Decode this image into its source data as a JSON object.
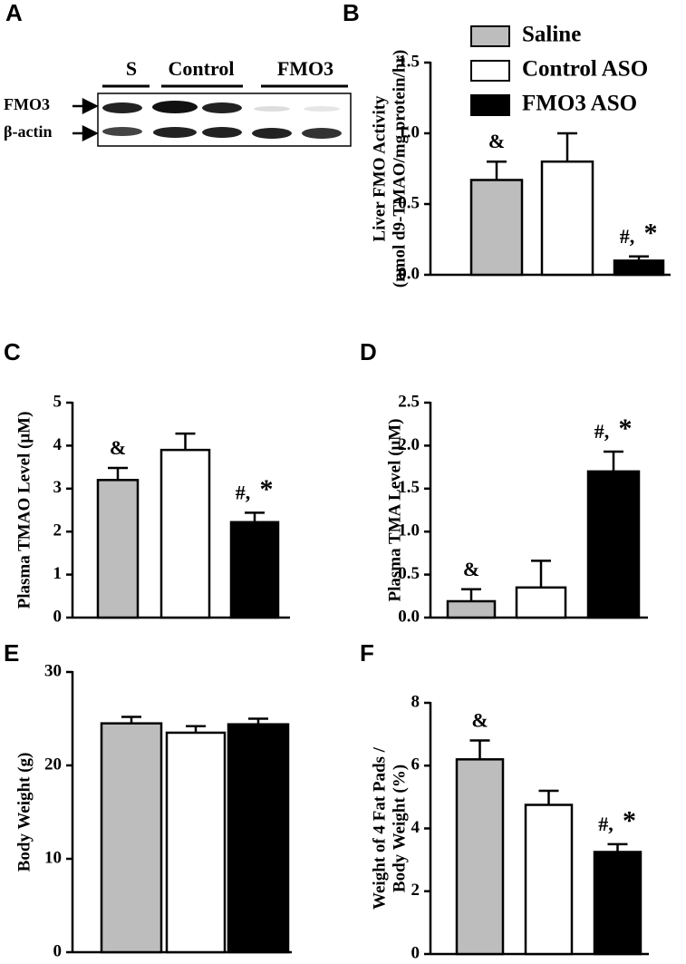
{
  "blot": {
    "panel": "A",
    "lanes": [
      "S",
      "Control",
      "FMO3"
    ],
    "rows": [
      "FMO3",
      "β-actin"
    ]
  },
  "chart_data": [
    {
      "type": "bar",
      "panel": "B",
      "ylabel": [
        "Liver FMO Activity",
        "(nmol d9-TMAO/mg protein/hr)"
      ],
      "ylim": [
        0,
        1.5
      ],
      "yticks": [
        {
          "value": 0,
          "label": "0.0"
        },
        {
          "value": 0.5,
          "label": "0.5"
        },
        {
          "value": 1,
          "label": "1.0"
        },
        {
          "value": 1.5,
          "label": "1.5"
        }
      ],
      "values": [
        0.67,
        0.8,
        0.1
      ],
      "errors": [
        0.13,
        0.2,
        0.03
      ],
      "colors": [
        "#bdbdbd",
        "#ffffff",
        "#000000"
      ],
      "annotations": [
        [
          "&"
        ],
        [],
        [
          "#,",
          "*"
        ]
      ],
      "legend": [
        "Saline",
        "Control ASO",
        "FMO3 ASO"
      ]
    },
    {
      "type": "bar",
      "panel": "C",
      "ylabel": [
        "Plasma TMAO Level (μM)"
      ],
      "ylim": [
        0,
        5
      ],
      "yticks": [
        0,
        1,
        2,
        3,
        4,
        5
      ],
      "values": [
        3.2,
        3.9,
        2.22
      ],
      "errors": [
        0.28,
        0.38,
        0.22
      ],
      "colors": [
        "#bdbdbd",
        "#ffffff",
        "#000000"
      ],
      "annotations": [
        [
          "&"
        ],
        [],
        [
          "#,",
          "*"
        ]
      ]
    },
    {
      "type": "bar",
      "panel": "D",
      "ylabel": [
        "Plasma TMA Level (μM)"
      ],
      "ylim": [
        0,
        2.5
      ],
      "yticks": [
        {
          "value": 0,
          "label": "0.0"
        },
        {
          "value": 0.5,
          "label": "0.5"
        },
        {
          "value": 1,
          "label": "1.0"
        },
        {
          "value": 1.5,
          "label": "1.5"
        },
        {
          "value": 2,
          "label": "2.0"
        },
        {
          "value": 2.5,
          "label": "2.5"
        }
      ],
      "values": [
        0.19,
        0.35,
        1.7
      ],
      "errors": [
        0.14,
        0.31,
        0.23
      ],
      "colors": [
        "#bdbdbd",
        "#ffffff",
        "#000000"
      ],
      "annotations": [
        [
          "&"
        ],
        [],
        [
          "#,",
          "*"
        ]
      ]
    },
    {
      "type": "bar",
      "panel": "E",
      "ylabel": [
        "Body Weight (g)"
      ],
      "ylim": [
        0,
        30
      ],
      "yticks": [
        0,
        10,
        20,
        30
      ],
      "values": [
        24.5,
        23.5,
        24.4
      ],
      "errors": [
        0.7,
        0.7,
        0.6
      ],
      "colors": [
        "#bdbdbd",
        "#ffffff",
        "#000000"
      ],
      "annotations": [
        [],
        [],
        []
      ]
    },
    {
      "type": "bar",
      "panel": "F",
      "ylabel": [
        "Weight of 4 Fat Pads /",
        "Body Weight (%)"
      ],
      "ylim": [
        0,
        8
      ],
      "yticks": [
        0,
        2,
        4,
        6,
        8
      ],
      "values": [
        6.2,
        4.75,
        3.25
      ],
      "errors": [
        0.6,
        0.45,
        0.25
      ],
      "colors": [
        "#bdbdbd",
        "#ffffff",
        "#000000"
      ],
      "annotations": [
        [
          "&"
        ],
        [],
        [
          "#,",
          "*"
        ]
      ]
    }
  ]
}
